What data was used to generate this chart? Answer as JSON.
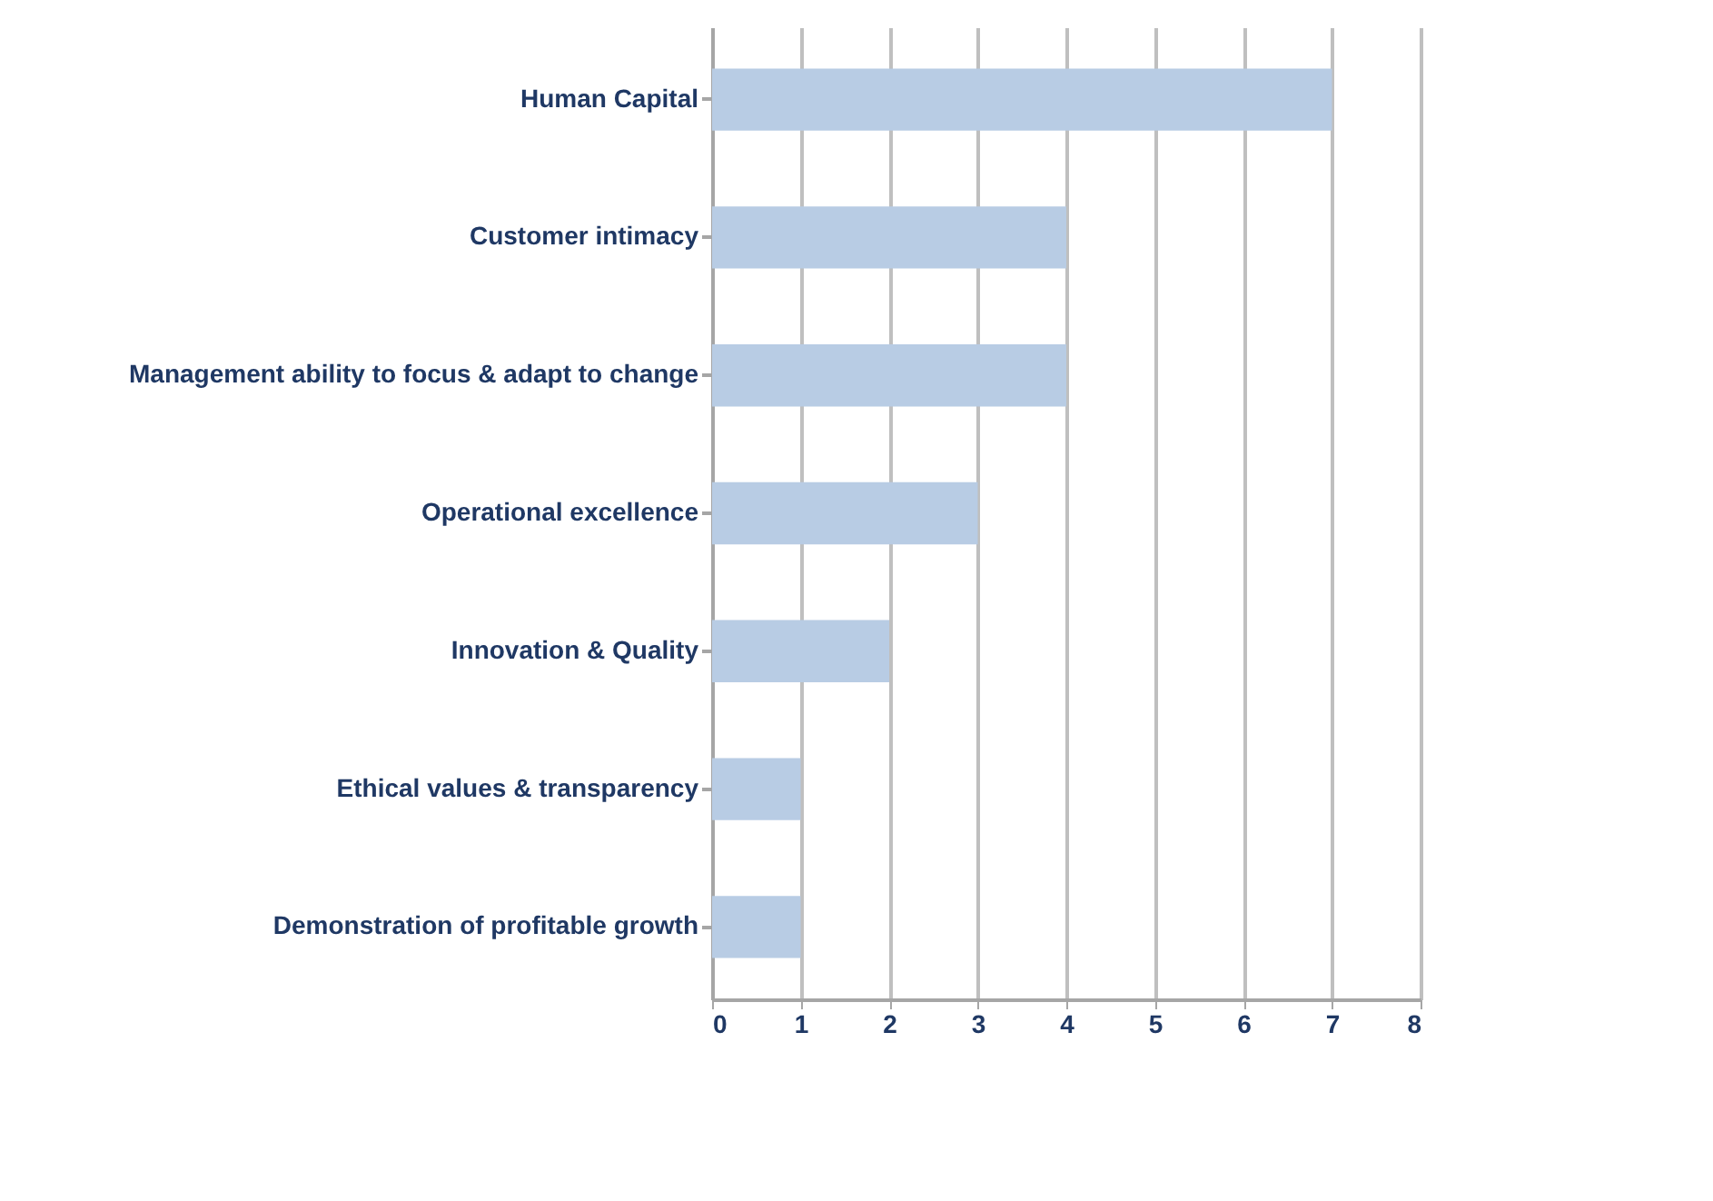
{
  "chart_data": {
    "type": "bar",
    "orientation": "horizontal",
    "categories": [
      "Human Capital",
      "Customer intimacy",
      "Management ability to focus & adapt to change",
      "Operational excellence",
      "Innovation & Quality",
      "Ethical values & transparency",
      "Demonstration of profitable growth"
    ],
    "values": [
      7,
      4,
      4,
      3,
      2,
      1,
      1
    ],
    "color": "#b8cce4",
    "xlim": [
      0,
      8
    ],
    "xticks": [
      0,
      1,
      2,
      3,
      4,
      5,
      6,
      7,
      8
    ],
    "grid": "x"
  }
}
